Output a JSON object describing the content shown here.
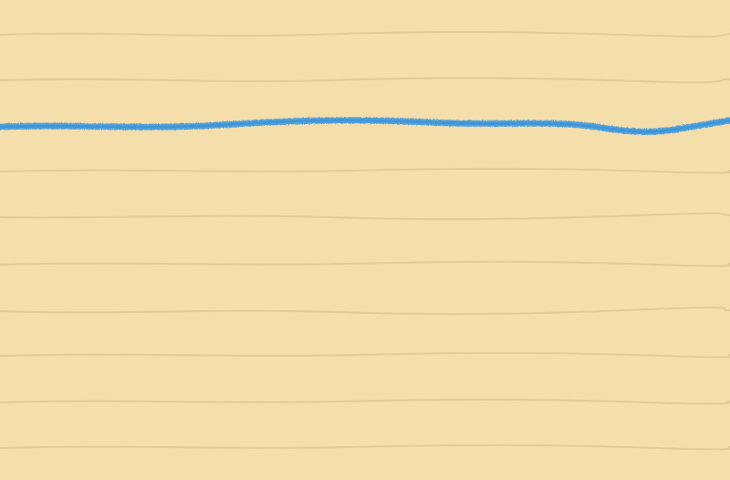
{
  "paper": {
    "background_color": "#f3dca7",
    "rule_color": "#e2c99a",
    "margin_line_color": "#4a9fdf"
  }
}
